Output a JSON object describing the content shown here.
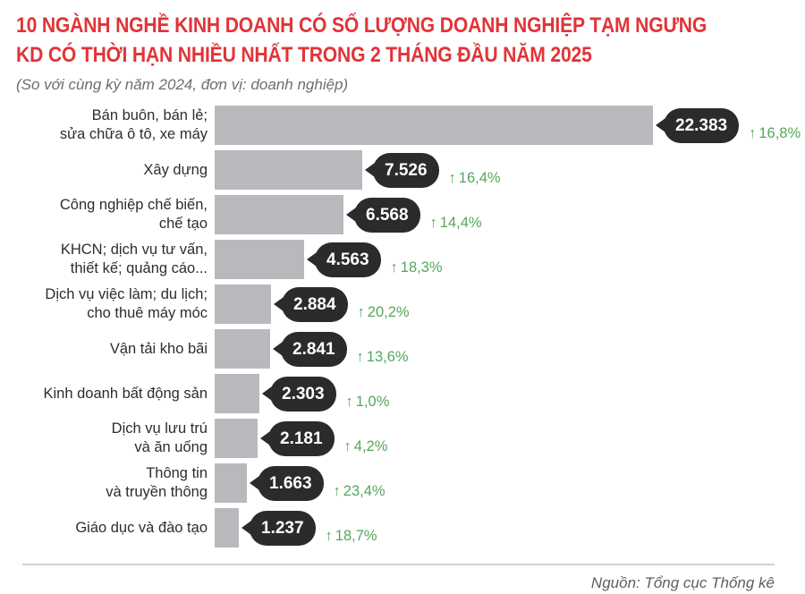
{
  "header": {
    "title": "10 NGÀNH NGHỀ KINH DOANH CÓ SỐ LƯỢNG DOANH NGHIỆP TẠM NGƯNG\nKD CÓ THỜI HẠN NHIỀU NHẤT TRONG 2 THÁNG ĐẦU NĂM 2025",
    "subtitle": "(So với cùng kỳ năm 2024, đơn vị: doanh nghiệp)"
  },
  "footer": {
    "source": "Nguồn: Tổng cục Thống kê"
  },
  "icons": {
    "up_arrow": "↑"
  },
  "colors": {
    "title_red": "#e13438",
    "bar_gray": "#b9b9bd",
    "badge_dark": "#2b2b2e",
    "growth_green": "#55a75a",
    "divider_gray": "#d2d0d4"
  },
  "chart_data": {
    "type": "bar",
    "orientation": "horizontal",
    "title": "10 NGÀNH NGHỀ KINH DOANH CÓ SỐ LƯỢNG DOANH NGHIỆP TẠM NGƯNG KD CÓ THỜI HẠN NHIỀU NHẤT TRONG 2 THÁNG ĐẦU NĂM 2025",
    "subtitle": "(So với cùng kỳ năm 2024, đơn vị: doanh nghiệp)",
    "comparison": "So với cùng kỳ năm 2024",
    "unit": "doanh nghiệp",
    "source": "Nguồn: Tổng cục Thống kê",
    "xlim": [
      0,
      22383
    ],
    "grid": false,
    "legend": false,
    "rows": [
      {
        "category": "Bán buôn, bán lẻ;\nsửa chữa ô tô, xe máy",
        "value": 22383,
        "value_label": "22.383",
        "change_percent": "16,8%",
        "change_direction": "up"
      },
      {
        "category": "Xây dựng",
        "value": 7526,
        "value_label": "7.526",
        "change_percent": "16,4%",
        "change_direction": "up"
      },
      {
        "category": "Công nghiệp chế biến,\nchế tạo",
        "value": 6568,
        "value_label": "6.568",
        "change_percent": "14,4%",
        "change_direction": "up"
      },
      {
        "category": "KHCN; dịch vụ tư vấn,\nthiết kế; quảng cáo...",
        "value": 4563,
        "value_label": "4.563",
        "change_percent": "18,3%",
        "change_direction": "up"
      },
      {
        "category": "Dịch vụ việc làm; du lịch;\ncho thuê máy móc",
        "value": 2884,
        "value_label": "2.884",
        "change_percent": "20,2%",
        "change_direction": "up"
      },
      {
        "category": "Vận tải kho bãi",
        "value": 2841,
        "value_label": "2.841",
        "change_percent": "13,6%",
        "change_direction": "up"
      },
      {
        "category": "Kinh doanh bất động sản",
        "value": 2303,
        "value_label": "2.303",
        "change_percent": "1,0%",
        "change_direction": "up"
      },
      {
        "category": "Dịch vụ lưu trú\nvà ăn uống",
        "value": 2181,
        "value_label": "2.181",
        "change_percent": "4,2%",
        "change_direction": "up"
      },
      {
        "category": "Thông tin\nvà truyền thông",
        "value": 1663,
        "value_label": "1.663",
        "change_percent": "23,4%",
        "change_direction": "up"
      },
      {
        "category": "Giáo dục và đào tạo",
        "value": 1237,
        "value_label": "1.237",
        "change_percent": "18,7%",
        "change_direction": "up"
      }
    ]
  }
}
